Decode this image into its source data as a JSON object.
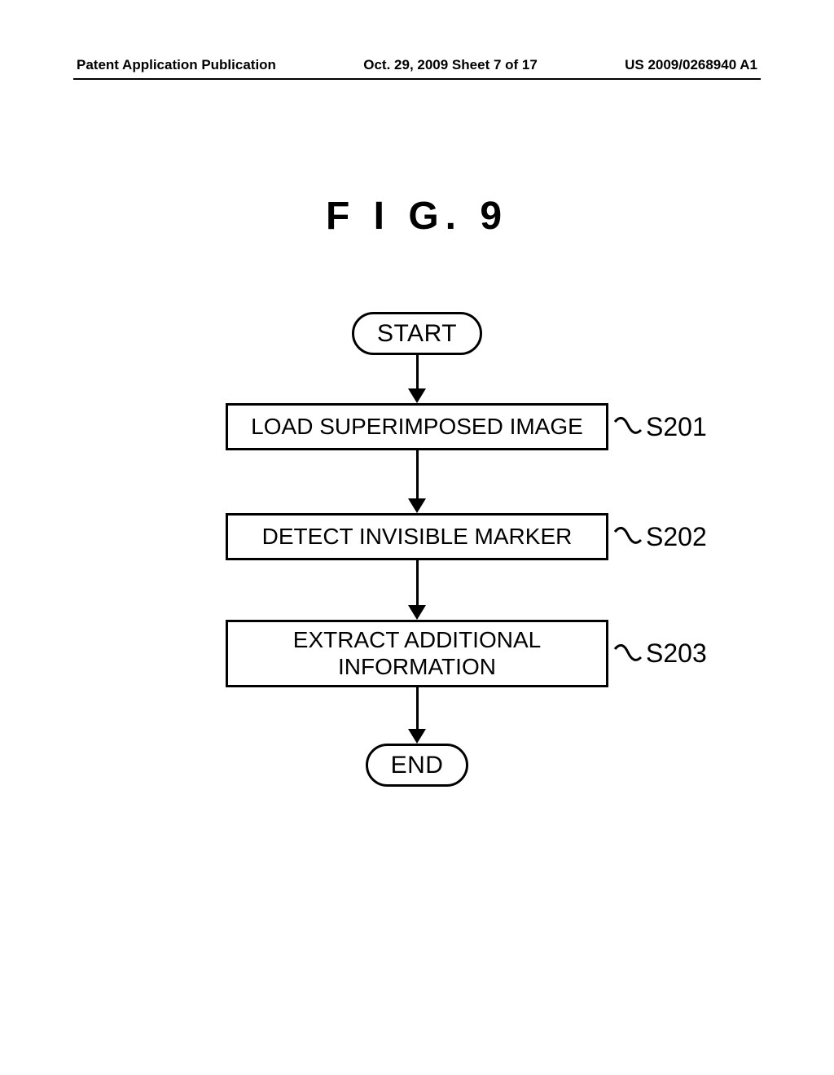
{
  "header": {
    "left": "Patent Application Publication",
    "center": "Oct. 29, 2009  Sheet 7 of 17",
    "right": "US 2009/0268940 A1"
  },
  "figure": {
    "title": "F I G.  9",
    "type": "flowchart",
    "background_color": "#ffffff",
    "stroke_color": "#000000",
    "stroke_width": 3,
    "font_family": "Arial",
    "terminator_fontsize": 30,
    "process_fontsize": 28,
    "step_fontsize": 32,
    "title_fontsize": 48,
    "process_box_width": 470,
    "terminator_radius": 28,
    "arrow_shaft_lengths": [
      42,
      60,
      56,
      52
    ],
    "arrow_head_w": 22,
    "arrow_head_h": 18,
    "nodes": [
      {
        "id": "start",
        "kind": "terminator",
        "label": "START"
      },
      {
        "id": "p1",
        "kind": "process",
        "label": "LOAD SUPERIMPOSED IMAGE",
        "step": "S201"
      },
      {
        "id": "p2",
        "kind": "process",
        "label": "DETECT INVISIBLE MARKER",
        "step": "S202"
      },
      {
        "id": "p3",
        "kind": "process",
        "label": "EXTRACT ADDITIONAL\nINFORMATION",
        "step": "S203"
      },
      {
        "id": "end",
        "kind": "terminator",
        "label": "END"
      }
    ],
    "edges": [
      {
        "from": "start",
        "to": "p1"
      },
      {
        "from": "p1",
        "to": "p2"
      },
      {
        "from": "p2",
        "to": "p3"
      },
      {
        "from": "p3",
        "to": "end"
      }
    ]
  }
}
